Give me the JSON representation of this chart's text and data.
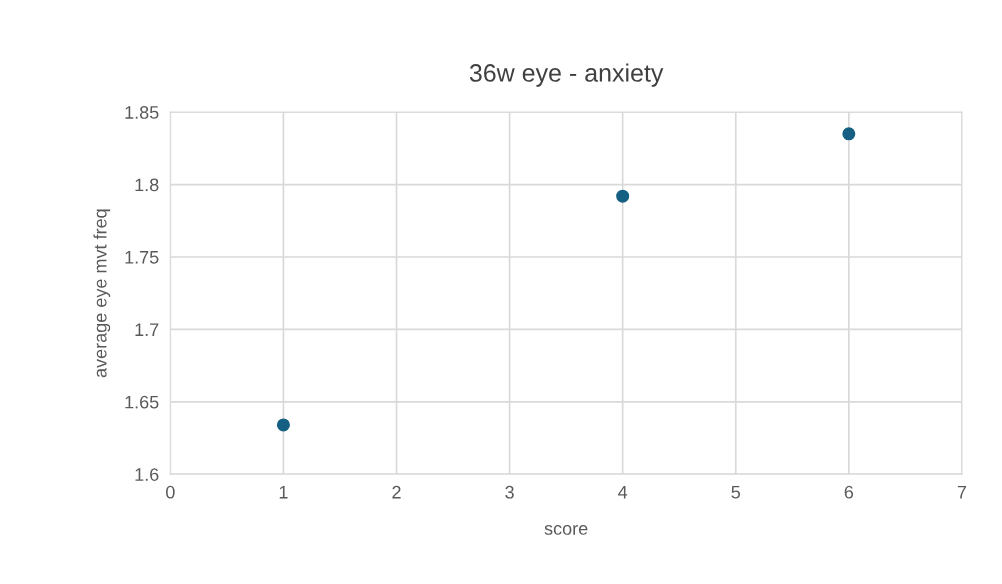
{
  "chart_data": {
    "type": "scatter",
    "title": "36w eye - anxiety",
    "xlabel": "score",
    "ylabel": "average eye mvt freq",
    "x": [
      1,
      4,
      6
    ],
    "series": [
      {
        "color": "#156082",
        "values": [
          1.634,
          1.792,
          1.835
        ]
      }
    ],
    "xlim": [
      0,
      7
    ],
    "xticks": [
      0,
      1,
      2,
      3,
      4,
      5,
      6,
      7
    ],
    "ylim": [
      1.6,
      1.85
    ],
    "yticks": [
      {
        "value": 1.6,
        "label": "1.6"
      },
      {
        "value": 1.65,
        "label": "1.65"
      },
      {
        "value": 1.7,
        "label": "1.7"
      },
      {
        "value": 1.75,
        "label": "1.75"
      },
      {
        "value": 1.8,
        "label": "1.8"
      },
      {
        "value": 1.85,
        "label": "1.85"
      }
    ],
    "grid": true,
    "marker": "circle"
  }
}
